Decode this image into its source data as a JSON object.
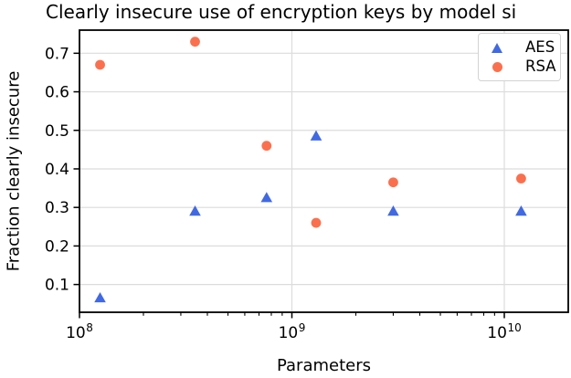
{
  "chart_data": {
    "type": "scatter",
    "title": "Clearly insecure use of encryption keys by model si",
    "xlabel": "Parameters",
    "ylabel": "Fraction clearly insecure",
    "x_scale": "log",
    "xlim": [
      100000000,
      20000000000
    ],
    "ylim": [
      0.028,
      0.76
    ],
    "xticks": [
      100000000,
      1000000000,
      10000000000
    ],
    "xtick_labels": [
      {
        "base": "10",
        "exp": "8"
      },
      {
        "base": "10",
        "exp": "9"
      },
      {
        "base": "10",
        "exp": "10"
      }
    ],
    "yticks": [
      0.1,
      0.2,
      0.3,
      0.4,
      0.5,
      0.6,
      0.7
    ],
    "ytick_labels": [
      "0.1",
      "0.2",
      "0.3",
      "0.4",
      "0.5",
      "0.6",
      "0.7"
    ],
    "grid": true,
    "legend": {
      "position": "upper right",
      "entries": [
        {
          "label": "AES",
          "marker": "triangle",
          "color": "#4169e1"
        },
        {
          "label": "RSA",
          "marker": "circle",
          "color": "#fa704e"
        }
      ]
    },
    "series": [
      {
        "name": "AES",
        "marker": "triangle",
        "color": "#4169e1",
        "points": [
          [
            125000000,
            0.065
          ],
          [
            350000000,
            0.29
          ],
          [
            760000000,
            0.325
          ],
          [
            1300000000,
            0.485
          ],
          [
            3000000000,
            0.29
          ],
          [
            12000000000,
            0.29
          ]
        ]
      },
      {
        "name": "RSA",
        "marker": "circle",
        "color": "#fa704e",
        "points": [
          [
            125000000,
            0.67
          ],
          [
            350000000,
            0.73
          ],
          [
            760000000,
            0.46
          ],
          [
            1300000000,
            0.26
          ],
          [
            3000000000,
            0.365
          ],
          [
            12000000000,
            0.375
          ]
        ]
      }
    ],
    "colors": {
      "grid": "#dcdcdc",
      "axis": "#000000",
      "text": "#000000"
    }
  }
}
